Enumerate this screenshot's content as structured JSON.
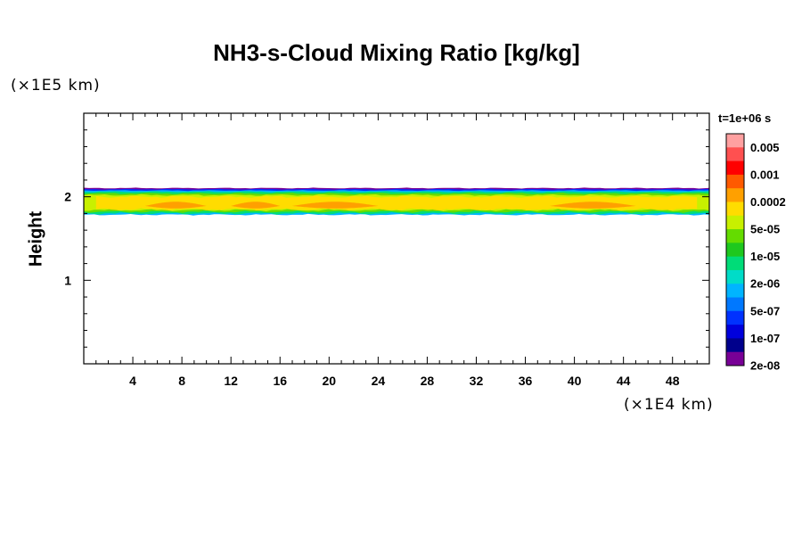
{
  "chart_data": {
    "type": "heatmap",
    "title": "NH3-s-Cloud Mixing Ratio [kg/kg]",
    "xlabel": "",
    "x_unit": "(×1E4 km)",
    "ylabel": "Height",
    "y_unit": "(×1E5 km)",
    "time_label": "t=1e+06 s",
    "xlim": [
      0,
      51
    ],
    "ylim": [
      0,
      3
    ],
    "x_ticks": [
      4,
      8,
      12,
      16,
      20,
      24,
      28,
      32,
      36,
      40,
      44,
      48
    ],
    "y_ticks": [
      1,
      2
    ],
    "colorbar": {
      "labels": [
        "0.005",
        "0.001",
        "0.0002",
        "5e-05",
        "1e-05",
        "2e-06",
        "5e-07",
        "1e-07",
        "2e-08"
      ],
      "colors": [
        "#ffa0a0",
        "#ff5050",
        "#ff0000",
        "#ff5a00",
        "#ffa000",
        "#ffdc00",
        "#c8f000",
        "#64dc00",
        "#1ec81e",
        "#00dc78",
        "#00dcc8",
        "#00b4ff",
        "#0078ff",
        "#0032ff",
        "#0000dc",
        "#00008c",
        "#780096"
      ]
    },
    "cloud_layer": {
      "base_height": 1.78,
      "top_height": 2.1,
      "max_category": "0.0002",
      "core_x_ranges": [
        [
          5,
          10
        ],
        [
          12,
          16
        ],
        [
          17,
          24
        ],
        [
          38,
          45
        ]
      ]
    }
  }
}
